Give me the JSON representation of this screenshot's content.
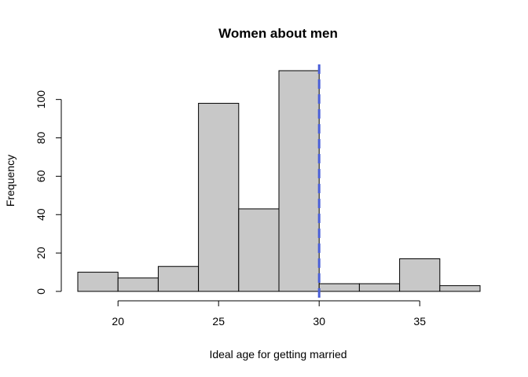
{
  "chart_data": {
    "type": "bar",
    "title": "Women about men",
    "xlabel": "Ideal age for getting married",
    "ylabel": "Frequency",
    "bins": [
      {
        "start": 18,
        "end": 20,
        "count": 10
      },
      {
        "start": 20,
        "end": 22,
        "count": 7
      },
      {
        "start": 22,
        "end": 24,
        "count": 13
      },
      {
        "start": 24,
        "end": 26,
        "count": 98
      },
      {
        "start": 26,
        "end": 28,
        "count": 43
      },
      {
        "start": 28,
        "end": 30,
        "count": 115
      },
      {
        "start": 30,
        "end": 32,
        "count": 4
      },
      {
        "start": 32,
        "end": 34,
        "count": 4
      },
      {
        "start": 34,
        "end": 36,
        "count": 17
      },
      {
        "start": 36,
        "end": 38,
        "count": 3
      }
    ],
    "xlim": [
      18,
      38
    ],
    "ylim": [
      0,
      115
    ],
    "xticks": [
      20,
      25,
      30,
      35
    ],
    "yticks": [
      0,
      20,
      40,
      60,
      80,
      100
    ],
    "vline": {
      "x": 30,
      "style": "dashed",
      "color": "#4a5fd8"
    },
    "bar_color": "#c8c8c8",
    "grid": false,
    "legend": "none"
  }
}
